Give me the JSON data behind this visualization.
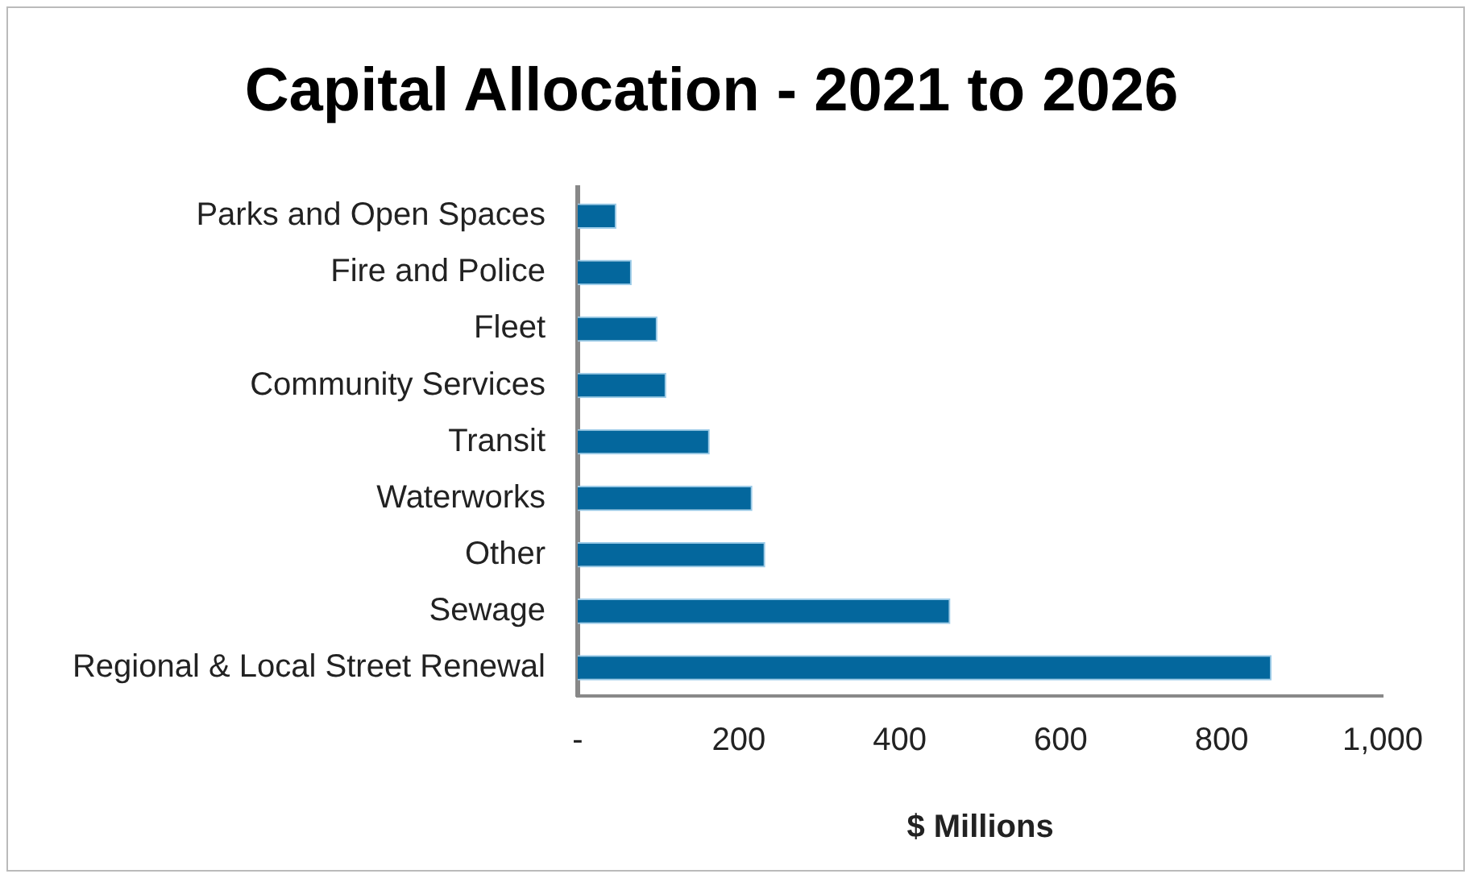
{
  "chart_data": {
    "type": "bar",
    "orientation": "horizontal",
    "title": "Capital Allocation - 2021 to 2026",
    "xlabel": "$ Millions",
    "categories": [
      "Parks and Open Spaces",
      "Fire and Police",
      "Fleet",
      "Community Services",
      "Transit",
      "Waterworks",
      "Other",
      "Sewage",
      "Regional & Local Street Renewal"
    ],
    "values": [
      48,
      67,
      99,
      110,
      164,
      217,
      233,
      463,
      862
    ],
    "color": "#04679d",
    "xlim": [
      0,
      1000
    ],
    "xticks": [
      {
        "value": 0,
        "label": "-"
      },
      200,
      400,
      600,
      800,
      "1,000"
    ],
    "grid": false,
    "legend": false
  }
}
